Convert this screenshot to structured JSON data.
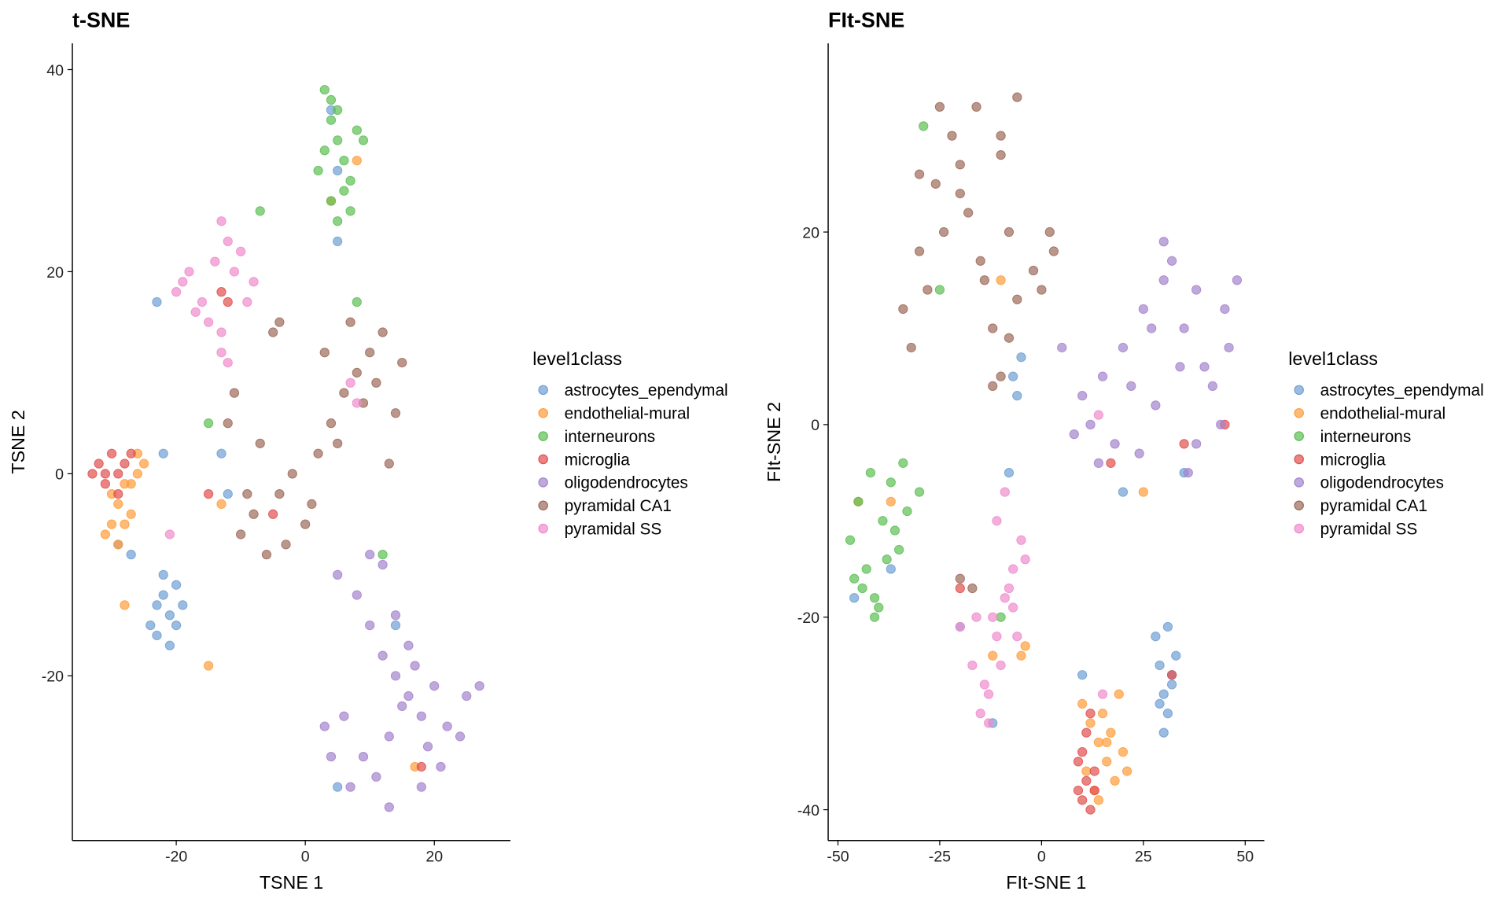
{
  "chart_data": [
    {
      "type": "scatter",
      "title": "t-SNE",
      "x_label": "TSNE 1",
      "y_label": "TSNE 2",
      "legend_title": "level1class",
      "xlim": [
        -36.1,
        31.8
      ],
      "ylim": [
        -36.3,
        42.6
      ],
      "xticks": [
        -20,
        0,
        20
      ],
      "yticks": [
        -20,
        0,
        20,
        40
      ],
      "series": [
        {
          "name": "astrocytes_ependymal",
          "color": "#6f9fd4",
          "x": [
            -22,
            -21,
            -23,
            -20,
            -19,
            -24,
            -22,
            -21,
            -20,
            -23,
            -27,
            -29,
            -12,
            -13,
            5,
            5,
            4,
            -23,
            14,
            5,
            -22
          ],
          "y": [
            -12,
            -14,
            -16,
            -11,
            -13,
            -15,
            -10,
            -17,
            -15,
            -13,
            -8,
            -7,
            -2,
            2,
            23,
            30,
            36,
            17,
            -15,
            -31,
            2
          ]
        },
        {
          "name": "endothelial-mural",
          "color": "#ff9d3c",
          "x": [
            -30,
            -29,
            -28,
            -31,
            -27,
            -26,
            -25,
            -29,
            -30,
            -28,
            -26,
            -27,
            4,
            8,
            -13,
            -28,
            -15,
            17
          ],
          "y": [
            -5,
            -3,
            -1,
            -6,
            -4,
            0,
            1,
            -7,
            -2,
            -5,
            2,
            -1,
            27,
            31,
            -3,
            -13,
            -19,
            -29
          ]
        },
        {
          "name": "interneurons",
          "color": "#5cbf54",
          "x": [
            3,
            4,
            5,
            6,
            7,
            2,
            8,
            4,
            5,
            6,
            3,
            7,
            9,
            5,
            4,
            -7,
            -15,
            8,
            12
          ],
          "y": [
            38,
            35,
            33,
            31,
            29,
            30,
            34,
            27,
            36,
            28,
            32,
            26,
            33,
            25,
            37,
            26,
            5,
            17,
            -8
          ]
        },
        {
          "name": "microglia",
          "color": "#e0504f",
          "x": [
            -33,
            -32,
            -31,
            -30,
            -29,
            -28,
            -31,
            -27,
            -15,
            -13,
            -12,
            -5,
            -29,
            18
          ],
          "y": [
            0,
            1,
            -1,
            2,
            0,
            1,
            0,
            2,
            -2,
            18,
            17,
            -4,
            -2,
            -29
          ]
        },
        {
          "name": "oligodendrocytes",
          "color": "#a483cc",
          "x": [
            5,
            8,
            10,
            12,
            14,
            16,
            18,
            20,
            22,
            25,
            27,
            6,
            9,
            11,
            13,
            15,
            17,
            19,
            21,
            24,
            3,
            7,
            10,
            14,
            16,
            12,
            13,
            18,
            4
          ],
          "y": [
            -10,
            -12,
            -15,
            -18,
            -20,
            -22,
            -24,
            -21,
            -25,
            -22,
            -21,
            -24,
            -28,
            -30,
            -26,
            -23,
            -19,
            -27,
            -29,
            -26,
            -25,
            -31,
            -8,
            -14,
            -17,
            -9,
            -33,
            -31,
            -28
          ]
        },
        {
          "name": "pyramidal CA1",
          "color": "#9c6a5a",
          "x": [
            -10,
            -8,
            -6,
            -4,
            -2,
            0,
            2,
            4,
            6,
            8,
            10,
            12,
            14,
            -12,
            -5,
            1,
            5,
            9,
            13,
            3,
            7,
            11,
            -3,
            -9,
            -7,
            -11,
            15,
            -4
          ],
          "y": [
            -6,
            -4,
            -8,
            -2,
            0,
            -5,
            2,
            5,
            8,
            10,
            12,
            14,
            6,
            5,
            14,
            -3,
            3,
            7,
            1,
            12,
            15,
            9,
            -7,
            -2,
            3,
            8,
            11,
            15
          ]
        },
        {
          "name": "pyramidal SS",
          "color": "#f08ccc",
          "x": [
            -20,
            -18,
            -16,
            -14,
            -12,
            -10,
            -8,
            -15,
            -13,
            -11,
            -17,
            -19,
            -9,
            -13,
            -12,
            7,
            8,
            -13,
            -21
          ],
          "y": [
            18,
            20,
            17,
            21,
            23,
            22,
            19,
            15,
            25,
            20,
            16,
            19,
            17,
            14,
            11,
            9,
            7,
            12,
            -6
          ]
        }
      ]
    },
    {
      "type": "scatter",
      "title": "FIt-SNE",
      "x_label": "FIt-SNE 1",
      "y_label": "FIt-SNE 2",
      "legend_title": "level1class",
      "xlim": [
        -52.4,
        54.7
      ],
      "ylim": [
        -43.2,
        39.6
      ],
      "xticks": [
        -50,
        -25,
        0,
        25,
        50
      ],
      "yticks": [
        -40,
        -20,
        0,
        20
      ],
      "series": [
        {
          "name": "astrocytes_ependymal",
          "color": "#6f9fd4",
          "x": [
            28,
            29,
            30,
            31,
            32,
            33,
            30,
            31,
            29,
            32,
            -7,
            -6,
            -5,
            -37,
            -8,
            -20,
            -46,
            20,
            35,
            10,
            -12
          ],
          "y": [
            -22,
            -25,
            -28,
            -30,
            -26,
            -24,
            -32,
            -21,
            -29,
            -27,
            5,
            3,
            7,
            -15,
            -5,
            -21,
            -18,
            -7,
            -5,
            -26,
            -31
          ]
        },
        {
          "name": "endothelial-mural",
          "color": "#ff9d3c",
          "x": [
            10,
            12,
            14,
            16,
            18,
            20,
            11,
            13,
            15,
            17,
            19,
            21,
            14,
            16,
            -4,
            -5,
            -45,
            -37,
            -10,
            25,
            -12
          ],
          "y": [
            -29,
            -31,
            -33,
            -35,
            -37,
            -34,
            -36,
            -38,
            -30,
            -32,
            -28,
            -36,
            -39,
            -33,
            -23,
            -24,
            -8,
            -8,
            15,
            -7,
            -24
          ]
        },
        {
          "name": "interneurons",
          "color": "#5cbf54",
          "x": [
            -47,
            -45,
            -43,
            -41,
            -39,
            -37,
            -35,
            -33,
            -44,
            -42,
            -40,
            -38,
            -36,
            -46,
            -41,
            -34,
            -30,
            -29,
            -25,
            -10
          ],
          "y": [
            -12,
            -8,
            -15,
            -18,
            -10,
            -6,
            -13,
            -9,
            -17,
            -5,
            -19,
            -14,
            -11,
            -16,
            -20,
            -4,
            -7,
            31,
            14,
            -20
          ]
        },
        {
          "name": "microglia",
          "color": "#e0504f",
          "x": [
            9,
            10,
            11,
            12,
            13,
            10,
            11,
            12,
            9,
            13,
            45,
            32,
            17,
            35,
            -20
          ],
          "y": [
            -38,
            -39,
            -37,
            -40,
            -36,
            -34,
            -32,
            -30,
            -35,
            -38,
            0,
            -26,
            -4,
            -2,
            -17
          ]
        },
        {
          "name": "oligodendrocytes",
          "color": "#a483cc",
          "x": [
            10,
            15,
            20,
            25,
            30,
            35,
            40,
            45,
            48,
            12,
            18,
            22,
            28,
            32,
            38,
            42,
            46,
            8,
            14,
            24,
            36,
            44,
            30,
            34,
            27,
            38,
            5
          ],
          "y": [
            3,
            5,
            8,
            12,
            15,
            10,
            6,
            12,
            15,
            0,
            -2,
            4,
            2,
            17,
            14,
            4,
            8,
            -1,
            -4,
            -3,
            -5,
            0,
            19,
            6,
            10,
            -2,
            8
          ]
        },
        {
          "name": "pyramidal CA1",
          "color": "#9c6a5a",
          "x": [
            -34,
            -30,
            -26,
            -22,
            -18,
            -14,
            -10,
            -6,
            -32,
            -28,
            -24,
            -20,
            -16,
            -12,
            -8,
            -25,
            -20,
            -15,
            -10,
            0,
            2,
            3,
            -2,
            -8,
            -12,
            -6,
            -30,
            -17,
            -20,
            -10
          ],
          "y": [
            12,
            18,
            25,
            30,
            22,
            15,
            28,
            34,
            8,
            14,
            20,
            27,
            33,
            10,
            20,
            33,
            24,
            17,
            5,
            14,
            20,
            18,
            16,
            9,
            4,
            13,
            26,
            -17,
            -16,
            30
          ]
        },
        {
          "name": "pyramidal SS",
          "color": "#f08ccc",
          "x": [
            -17,
            -15,
            -13,
            -11,
            -9,
            -7,
            -5,
            -12,
            -10,
            -8,
            -14,
            -16,
            -6,
            -4,
            -13,
            -11,
            -9,
            -7,
            14,
            15,
            -20
          ],
          "y": [
            -25,
            -30,
            -28,
            -22,
            -18,
            -15,
            -12,
            -20,
            -25,
            -17,
            -27,
            -20,
            -22,
            -14,
            -31,
            -10,
            -7,
            -19,
            1,
            -28,
            -21
          ]
        }
      ]
    }
  ]
}
